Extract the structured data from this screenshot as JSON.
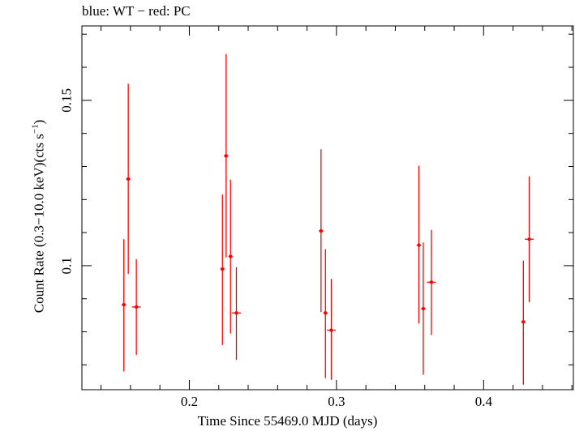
{
  "chart_data": {
    "type": "scatter",
    "title": "blue: WT − red: PC",
    "xlabel": "Time Since 55469.0 MJD (days)",
    "ylabel_main": "Count Rate (0.3−10.0 keV)(cts s",
    "ylabel_exp": "−1",
    "ylabel_end": ")",
    "xlim": [
      0.127,
      0.461
    ],
    "ylim": [
      0.0625,
      0.1725
    ],
    "x_ticks": [
      0.2,
      0.3,
      0.4
    ],
    "x_tick_labels": [
      "0.2",
      "0.3",
      "0.4"
    ],
    "y_ticks": [
      0.1,
      0.15
    ],
    "y_tick_labels": [
      "0.1",
      "0.15"
    ],
    "series": [
      {
        "color": "#ff0000",
        "points": [
          {
            "x": 0.1555,
            "y": 0.0882,
            "xerr": 0.0015,
            "ylo": 0.068,
            "yhi": 0.108
          },
          {
            "x": 0.1585,
            "y": 0.1262,
            "xerr": 0.0015,
            "ylo": 0.0975,
            "yhi": 0.155
          },
          {
            "x": 0.164,
            "y": 0.0875,
            "xerr": 0.003,
            "ylo": 0.073,
            "yhi": 0.102
          },
          {
            "x": 0.2225,
            "y": 0.099,
            "xerr": 0.0015,
            "ylo": 0.076,
            "yhi": 0.1215
          },
          {
            "x": 0.225,
            "y": 0.1332,
            "xerr": 0.0015,
            "ylo": 0.1025,
            "yhi": 0.164
          },
          {
            "x": 0.228,
            "y": 0.1028,
            "xerr": 0.0015,
            "ylo": 0.0795,
            "yhi": 0.126
          },
          {
            "x": 0.232,
            "y": 0.0857,
            "xerr": 0.003,
            "ylo": 0.0715,
            "yhi": 0.0995
          },
          {
            "x": 0.2895,
            "y": 0.1105,
            "xerr": 0.0015,
            "ylo": 0.086,
            "yhi": 0.1352
          },
          {
            "x": 0.2925,
            "y": 0.0857,
            "xerr": 0.0015,
            "ylo": 0.066,
            "yhi": 0.105
          },
          {
            "x": 0.2965,
            "y": 0.0805,
            "xerr": 0.003,
            "ylo": 0.0655,
            "yhi": 0.096
          },
          {
            "x": 0.356,
            "y": 0.1062,
            "xerr": 0.0015,
            "ylo": 0.0825,
            "yhi": 0.1302
          },
          {
            "x": 0.359,
            "y": 0.087,
            "xerr": 0.0015,
            "ylo": 0.067,
            "yhi": 0.107
          },
          {
            "x": 0.3645,
            "y": 0.095,
            "xerr": 0.003,
            "ylo": 0.079,
            "yhi": 0.1108
          },
          {
            "x": 0.427,
            "y": 0.083,
            "xerr": 0.0015,
            "ylo": 0.064,
            "yhi": 0.1015
          },
          {
            "x": 0.431,
            "y": 0.108,
            "xerr": 0.003,
            "ylo": 0.089,
            "yhi": 0.127
          }
        ]
      }
    ],
    "grid": false,
    "legend": "none"
  }
}
